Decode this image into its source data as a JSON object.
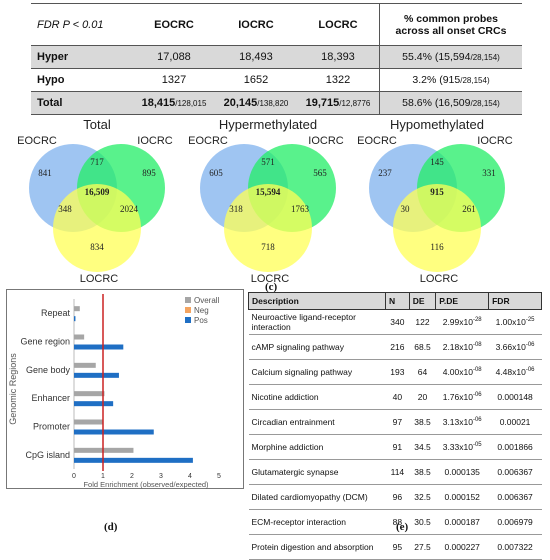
{
  "summary_table": {
    "header": {
      "fdr_label": "FDR P < 0.01",
      "col1": "EOCRC",
      "col2": "IOCRC",
      "col3": "LOCRC",
      "col4": "% common probes across all onset CRCs"
    },
    "rows": [
      {
        "label": "Hyper",
        "v1": "17,088",
        "v2": "18,493",
        "v3": "18,393",
        "pct": "55.4% (15,594",
        "pct_den": "/28,154)"
      },
      {
        "label": "Hypo",
        "v1": "1327",
        "v2": "1652",
        "v3": "1322",
        "pct": "3.2% (915",
        "pct_den": "/28,154)"
      },
      {
        "label": "Total",
        "v1": "18,415",
        "v1_den": "/128,015",
        "v2": "20,145",
        "v2_den": "/138,820",
        "v3": "19,715",
        "v3_den": "/12,8776",
        "pct": "58.6% (16,509",
        "pct_den": "/28,154)"
      }
    ]
  },
  "venns": [
    {
      "title": "Total",
      "labels": [
        "EOCRC",
        "IOCRC",
        "LOCRC"
      ],
      "only_eo": "841",
      "only_io": "895",
      "only_lo": "834",
      "eo_io": "717",
      "eo_lo": "348",
      "io_lo": "2024",
      "all": "16,509"
    },
    {
      "title": "Hypermethylated",
      "labels": [
        "EOCRC",
        "IOCRC",
        "LOCRC"
      ],
      "only_eo": "605",
      "only_io": "565",
      "only_lo": "718",
      "eo_io": "571",
      "eo_lo": "318",
      "io_lo": "1763",
      "all": "15,594"
    },
    {
      "title": "Hypomethylated",
      "labels": [
        "EOCRC",
        "IOCRC",
        "LOCRC"
      ],
      "only_eo": "237",
      "only_io": "331",
      "only_lo": "116",
      "eo_io": "145",
      "eo_lo": "30",
      "io_lo": "261",
      "all": "915"
    }
  ],
  "venn_panel_label": "(c)",
  "colors": {
    "eo": "#7fb2ee",
    "io": "#22ee66",
    "lo": "#ffff55",
    "overall": "#a6a6a6",
    "neg": "#f4a460",
    "pos": "#1f6fc4",
    "ref_line": "#cc2222"
  },
  "chart_data": {
    "type": "bar",
    "orientation": "horizontal",
    "categories": [
      "Repeat",
      "Gene region",
      "Gene body",
      "Enhancer",
      "Promoter",
      "CpG island"
    ],
    "series": [
      {
        "name": "Overall",
        "values": [
          0.2,
          0.35,
          0.75,
          1.05,
          1.0,
          2.05
        ]
      },
      {
        "name": "Neg",
        "values": [
          0,
          0,
          0,
          0,
          0,
          0
        ]
      },
      {
        "name": "Pos",
        "values": [
          0.05,
          1.7,
          1.55,
          1.35,
          2.75,
          4.1
        ]
      }
    ],
    "xlabel": "Fold Enrichment (observed/expected)",
    "ylabel": "Genomic Regions",
    "xlim": [
      0,
      5
    ],
    "xticks": [
      "0",
      "1",
      "2",
      "3",
      "4",
      "5"
    ],
    "reference_line": 1,
    "legend": "top-right",
    "panel_label": "(d)"
  },
  "pathway_table": {
    "headers": [
      "Description",
      "N",
      "DE",
      "P.DE",
      "FDR"
    ],
    "rows": [
      {
        "desc": "Neuroactive ligand-receptor interaction",
        "n": "340",
        "de": "122",
        "p_m": "2.99x10",
        "p_e": "-28",
        "f_m": "1.00x10",
        "f_e": "-25"
      },
      {
        "desc": "cAMP signaling pathway",
        "n": "216",
        "de": "68.5",
        "p_m": "2.18x10",
        "p_e": "-08",
        "f_m": "3.66x10",
        "f_e": "-06"
      },
      {
        "desc": "Calcium signaling pathway",
        "n": "193",
        "de": "64",
        "p_m": "4.00x10",
        "p_e": "-08",
        "f_m": "4.48x10",
        "f_e": "-06"
      },
      {
        "desc": "Nicotine addiction",
        "n": "40",
        "de": "20",
        "p_m": "1.76x10",
        "p_e": "-06",
        "f_m": "0.000148",
        "f_e": ""
      },
      {
        "desc": "Circadian entrainment",
        "n": "97",
        "de": "38.5",
        "p_m": "3.13x10",
        "p_e": "-06",
        "f_m": "0.00021",
        "f_e": ""
      },
      {
        "desc": "Morphine addiction",
        "n": "91",
        "de": "34.5",
        "p_m": "3.33x10",
        "p_e": "-05",
        "f_m": "0.001866",
        "f_e": ""
      },
      {
        "desc": "Glutamatergic synapse",
        "n": "114",
        "de": "38.5",
        "p_m": "0.000135",
        "p_e": "",
        "f_m": "0.006367",
        "f_e": ""
      },
      {
        "desc": "Dilated cardiomyopathy (DCM)",
        "n": "96",
        "de": "32.5",
        "p_m": "0.000152",
        "p_e": "",
        "f_m": "0.006367",
        "f_e": ""
      },
      {
        "desc": "ECM-receptor interaction",
        "n": "88",
        "de": "30.5",
        "p_m": "0.000187",
        "p_e": "",
        "f_m": "0.006979",
        "f_e": ""
      },
      {
        "desc": "Protein digestion and absorption",
        "n": "95",
        "de": "27.5",
        "p_m": "0.000227",
        "p_e": "",
        "f_m": "0.007322",
        "f_e": ""
      }
    ],
    "panel_label": "(e)"
  }
}
